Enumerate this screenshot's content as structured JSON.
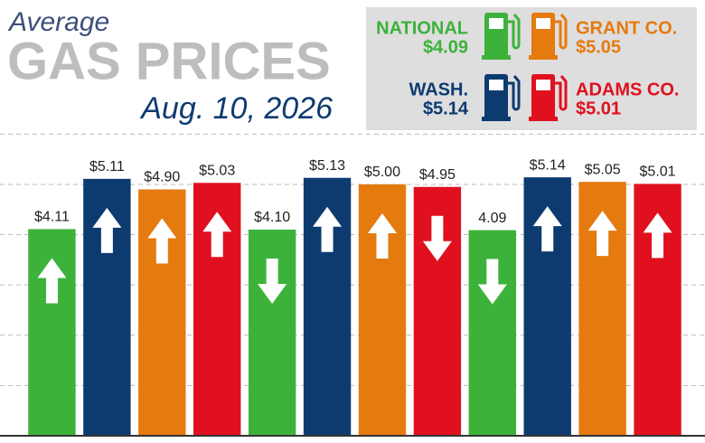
{
  "chart_data": {
    "type": "bar",
    "title": "GAS PRICES",
    "kicker": "Average",
    "subtitle": "Aug. 10, 2026",
    "categories": [
      null,
      null,
      null
    ],
    "series": [
      {
        "name": "NATIONAL",
        "legend_label": "$4.09",
        "color": "#3db23a",
        "values": [
          4.11,
          4.1,
          4.09
        ],
        "value_labels": [
          "$4.11",
          "$4.10",
          "4.09"
        ],
        "directions": [
          "up",
          "down",
          "down"
        ]
      },
      {
        "name": "WASH.",
        "legend_label": "$5.14",
        "color": "#0d3b70",
        "values": [
          5.11,
          5.13,
          5.14
        ],
        "value_labels": [
          "$5.11",
          "$5.13",
          "$5.14"
        ],
        "directions": [
          "up",
          "up",
          "up"
        ]
      },
      {
        "name": "GRANT CO.",
        "legend_label": "$5.05",
        "color": "#e57a0f",
        "values": [
          4.9,
          5.0,
          5.05
        ],
        "value_labels": [
          "$4.90",
          "$5.00",
          "$5.05"
        ],
        "directions": [
          "up",
          "up",
          "up"
        ]
      },
      {
        "name": "ADAMS CO.",
        "legend_label": "$5.01",
        "color": "#e0101f",
        "values": [
          5.03,
          4.95,
          5.01
        ],
        "value_labels": [
          "$5.03",
          "$4.95",
          "$5.01"
        ],
        "directions": [
          "up",
          "down",
          "up"
        ]
      }
    ],
    "ylim": [
      0,
      6.06
    ],
    "yticks": [
      1,
      2,
      3,
      4,
      5,
      6
    ],
    "grid": true
  }
}
